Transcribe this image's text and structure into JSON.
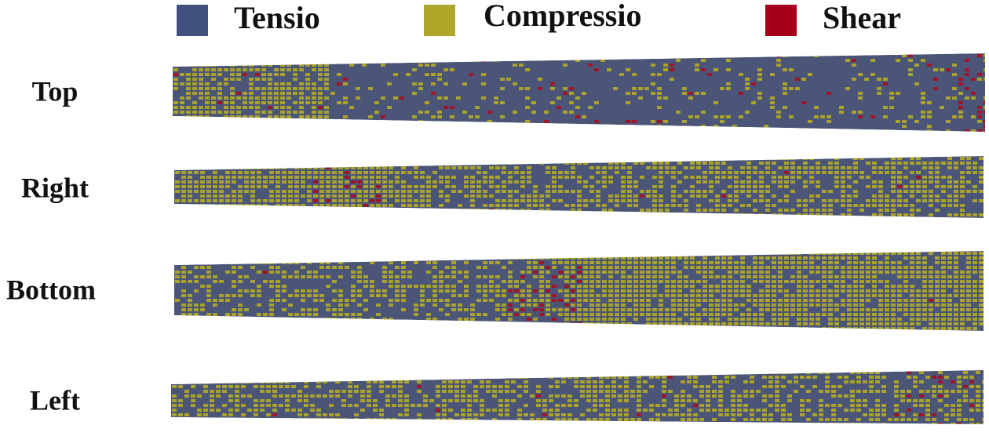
{
  "legend": [
    "Tensio",
    "Compressio",
    "Shear"
  ],
  "rows": [
    "Top",
    "Right",
    "Bottom",
    "Left"
  ]
}
